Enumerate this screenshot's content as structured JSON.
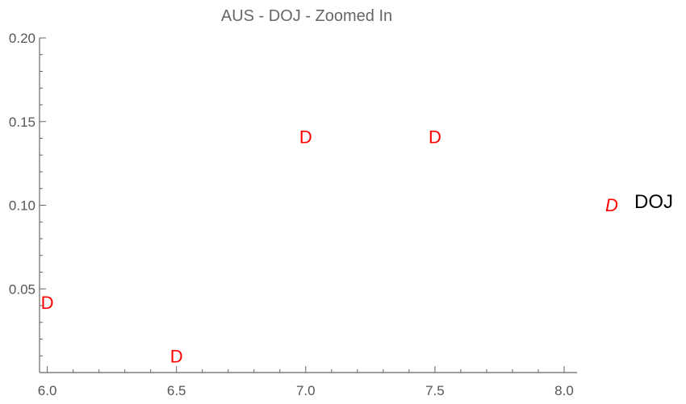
{
  "chart_data": {
    "type": "scatter",
    "title": "AUS - DOJ - Zoomed In",
    "xlabel": "",
    "ylabel": "",
    "xlim": [
      5.97,
      8.05
    ],
    "ylim": [
      0.0,
      0.2
    ],
    "x_ticks": [
      6.0,
      6.5,
      7.0,
      7.5,
      8.0
    ],
    "x_tick_labels": [
      "6.0",
      "6.5",
      "7.0",
      "7.5",
      "8.0"
    ],
    "y_ticks": [
      0.05,
      0.1,
      0.15,
      0.2
    ],
    "y_tick_labels": [
      "0.05",
      "0.10",
      "0.15",
      "0.20"
    ],
    "marker_symbol": "D",
    "marker_color": "#ff0000",
    "legend_position": "right",
    "series": [
      {
        "name": "DOJ",
        "points": [
          {
            "x": 6.0,
            "y": 0.042
          },
          {
            "x": 6.5,
            "y": 0.01
          },
          {
            "x": 7.0,
            "y": 0.141
          },
          {
            "x": 7.5,
            "y": 0.141
          }
        ]
      }
    ]
  }
}
